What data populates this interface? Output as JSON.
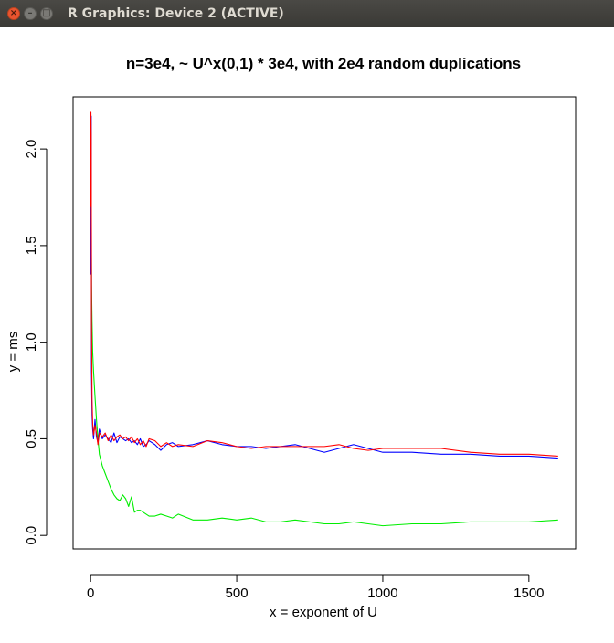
{
  "window": {
    "title": "R Graphics: Device 2 (ACTIVE)",
    "close_glyph": "×",
    "min_glyph": "–",
    "max_glyph": "□"
  },
  "chart_data": {
    "type": "line",
    "title": "n=3e4, ~ U^x(0,1) * 3e4, with 2e4 random duplications",
    "xlabel": "x = exponent of U",
    "ylabel": "y = ms",
    "xlim": [
      -60,
      1660
    ],
    "ylim": [
      -0.07,
      2.27
    ],
    "xticks": [
      0,
      500,
      1000,
      1500
    ],
    "xtick_labels": [
      "0",
      "500",
      "1000",
      "1500"
    ],
    "yticks": [
      0.0,
      0.5,
      1.0,
      1.5,
      2.0
    ],
    "ytick_labels": [
      "0.0",
      "0.5",
      "1.0",
      "1.5",
      "2.0"
    ],
    "grid": false,
    "legend": "none",
    "series": [
      {
        "color": "#0000ff",
        "x": [
          0,
          1,
          2,
          3,
          5,
          7,
          10,
          15,
          20,
          25,
          30,
          40,
          50,
          60,
          70,
          80,
          90,
          100,
          110,
          120,
          130,
          140,
          150,
          160,
          170,
          180,
          190,
          200,
          220,
          240,
          260,
          280,
          300,
          350,
          400,
          450,
          500,
          550,
          600,
          650,
          700,
          750,
          800,
          850,
          900,
          950,
          1000,
          1100,
          1200,
          1300,
          1400,
          1500,
          1600
        ],
        "y": [
          1.35,
          1.48,
          2.17,
          0.85,
          0.62,
          0.55,
          0.5,
          0.6,
          0.51,
          0.48,
          0.55,
          0.5,
          0.52,
          0.5,
          0.48,
          0.53,
          0.48,
          0.51,
          0.5,
          0.49,
          0.5,
          0.48,
          0.49,
          0.47,
          0.5,
          0.46,
          0.47,
          0.49,
          0.47,
          0.44,
          0.47,
          0.48,
          0.46,
          0.47,
          0.49,
          0.47,
          0.46,
          0.46,
          0.45,
          0.46,
          0.47,
          0.45,
          0.43,
          0.45,
          0.47,
          0.45,
          0.43,
          0.43,
          0.42,
          0.42,
          0.41,
          0.41,
          0.4
        ]
      },
      {
        "color": "#ff0000",
        "x": [
          0,
          1,
          2,
          3,
          5,
          7,
          10,
          15,
          20,
          25,
          30,
          40,
          50,
          60,
          70,
          80,
          90,
          100,
          110,
          120,
          130,
          140,
          150,
          160,
          170,
          180,
          190,
          200,
          220,
          240,
          260,
          280,
          300,
          350,
          400,
          450,
          500,
          550,
          600,
          650,
          700,
          750,
          800,
          850,
          900,
          950,
          1000,
          1100,
          1200,
          1300,
          1400,
          1500,
          1600
        ],
        "y": [
          1.7,
          2.19,
          2.07,
          1.1,
          0.7,
          0.58,
          0.52,
          0.57,
          0.53,
          0.47,
          0.53,
          0.51,
          0.53,
          0.49,
          0.52,
          0.49,
          0.51,
          0.52,
          0.5,
          0.51,
          0.49,
          0.51,
          0.48,
          0.5,
          0.47,
          0.49,
          0.46,
          0.5,
          0.49,
          0.46,
          0.48,
          0.46,
          0.47,
          0.46,
          0.49,
          0.48,
          0.46,
          0.45,
          0.46,
          0.46,
          0.46,
          0.46,
          0.46,
          0.47,
          0.45,
          0.44,
          0.45,
          0.45,
          0.45,
          0.43,
          0.42,
          0.42,
          0.41
        ]
      },
      {
        "color": "#00ee00",
        "x": [
          0,
          1,
          2,
          3,
          5,
          7,
          10,
          15,
          20,
          25,
          30,
          40,
          50,
          60,
          70,
          80,
          90,
          100,
          110,
          120,
          130,
          140,
          150,
          160,
          170,
          180,
          190,
          200,
          220,
          240,
          260,
          280,
          300,
          350,
          400,
          450,
          500,
          550,
          600,
          650,
          700,
          750,
          800,
          850,
          900,
          950,
          1000,
          1100,
          1200,
          1300,
          1400,
          1500,
          1600
        ],
        "y": [
          1.92,
          1.8,
          1.55,
          1.3,
          1.1,
          0.95,
          0.85,
          0.72,
          0.6,
          0.5,
          0.42,
          0.36,
          0.32,
          0.28,
          0.24,
          0.21,
          0.19,
          0.18,
          0.21,
          0.19,
          0.15,
          0.2,
          0.12,
          0.13,
          0.13,
          0.12,
          0.11,
          0.1,
          0.1,
          0.11,
          0.1,
          0.09,
          0.11,
          0.08,
          0.08,
          0.09,
          0.08,
          0.09,
          0.07,
          0.07,
          0.08,
          0.07,
          0.06,
          0.06,
          0.07,
          0.06,
          0.05,
          0.06,
          0.06,
          0.07,
          0.07,
          0.07,
          0.08
        ]
      }
    ]
  }
}
